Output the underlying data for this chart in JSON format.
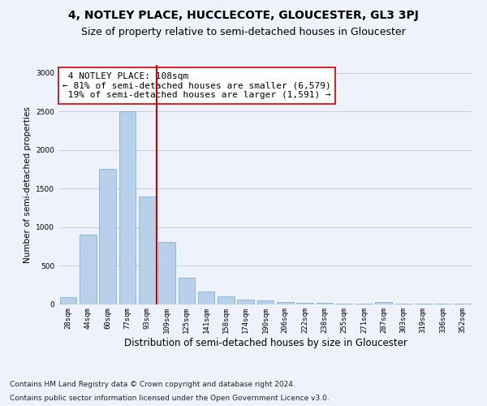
{
  "title": "4, NOTLEY PLACE, HUCCLECOTE, GLOUCESTER, GL3 3PJ",
  "subtitle": "Size of property relative to semi-detached houses in Gloucester",
  "xlabel": "Distribution of semi-detached houses by size in Gloucester",
  "ylabel": "Number of semi-detached properties",
  "categories": [
    "28sqm",
    "44sqm",
    "60sqm",
    "77sqm",
    "93sqm",
    "109sqm",
    "125sqm",
    "141sqm",
    "158sqm",
    "174sqm",
    "190sqm",
    "206sqm",
    "222sqm",
    "238sqm",
    "255sqm",
    "271sqm",
    "287sqm",
    "303sqm",
    "319sqm",
    "336sqm",
    "352sqm"
  ],
  "values": [
    90,
    900,
    1750,
    2500,
    1400,
    810,
    350,
    170,
    100,
    60,
    50,
    30,
    20,
    20,
    10,
    10,
    30,
    10,
    10,
    10,
    10
  ],
  "bar_color": "#b8d0ea",
  "bar_edge_color": "#6fa8d4",
  "grid_color": "#ccccdd",
  "background_color": "#eef2fa",
  "annotation_box_color": "#ffffff",
  "annotation_box_edge": "#cc0000",
  "red_line_bin_index": 5,
  "property_size": "108sqm",
  "pct_smaller": 81,
  "n_smaller": "6,579",
  "pct_larger": 19,
  "n_larger": "1,591",
  "footnote1": "Contains HM Land Registry data © Crown copyright and database right 2024.",
  "footnote2": "Contains public sector information licensed under the Open Government Licence v3.0.",
  "ylim": [
    0,
    3100
  ],
  "yticks": [
    0,
    500,
    1000,
    1500,
    2000,
    2500,
    3000
  ],
  "title_fontsize": 10,
  "subtitle_fontsize": 9,
  "annotation_fontsize": 8,
  "footnote_fontsize": 6.5,
  "xlabel_fontsize": 8.5,
  "ylabel_fontsize": 7.5,
  "tick_fontsize": 6.5
}
